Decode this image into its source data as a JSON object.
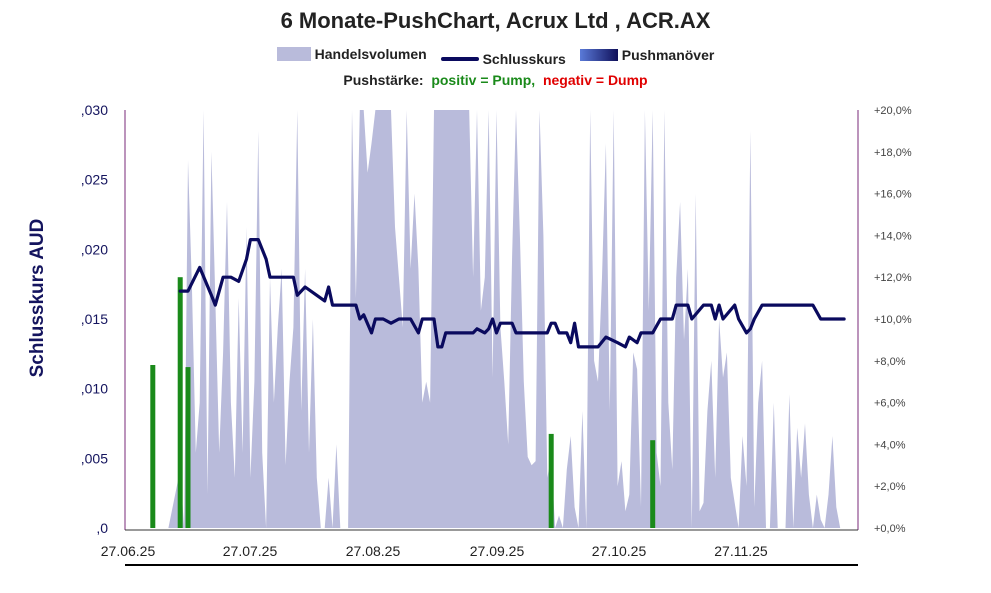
{
  "chart_data": {
    "type": "line",
    "title": "6 Monate-PushChart, Acrux Ltd , ACR.AX",
    "ylabel": "Schlusskurs AUD",
    "legend": [
      {
        "name": "Handelsvolumen",
        "kind": "area",
        "color": "#b9bbdb"
      },
      {
        "name": "Schlusskurs",
        "kind": "line",
        "color": "#0a0a5e"
      },
      {
        "name": "Pushmanöver",
        "kind": "gradient",
        "color": "#10105a"
      }
    ],
    "subtitle": {
      "label": "Pushstärke:",
      "positive": "positiv = Pump,",
      "negative": "negativ = Dump",
      "positive_color": "#1a8a1a",
      "negative_color": "#e00000"
    },
    "x_tick_labels": [
      "27.06.25",
      "27.07.25",
      "27.08.25",
      "27.09.25",
      "27.10.25",
      "27.11.25"
    ],
    "y_left": {
      "min": 0,
      "max": 0.03,
      "ticks": [
        ",0",
        ",005",
        ",010",
        ",015",
        ",020",
        ",025",
        ",030"
      ]
    },
    "y_right": {
      "min": 0,
      "max": 20,
      "ticks": [
        "+0,0%",
        "+2,0%",
        "+4,0%",
        "+6,0%",
        "+8,0%",
        "+10,0%",
        "+12,0%",
        "+14,0%",
        "+16,0%",
        "+18,0%",
        "+20,0%"
      ]
    },
    "days_total": 181,
    "close_price": [
      [
        9,
        0.017
      ],
      [
        11,
        0.017
      ],
      [
        14,
        0.0187
      ],
      [
        17,
        0.0167
      ],
      [
        18,
        0.016
      ],
      [
        20,
        0.018
      ],
      [
        22,
        0.018
      ],
      [
        24,
        0.0177
      ],
      [
        26,
        0.0193
      ],
      [
        27,
        0.0207
      ],
      [
        29,
        0.0207
      ],
      [
        31,
        0.0193
      ],
      [
        32,
        0.018
      ],
      [
        38,
        0.018
      ],
      [
        39,
        0.0167
      ],
      [
        41,
        0.0173
      ],
      [
        44,
        0.0167
      ],
      [
        46,
        0.0163
      ],
      [
        47,
        0.0173
      ],
      [
        48,
        0.016
      ],
      [
        54,
        0.016
      ],
      [
        55,
        0.015
      ],
      [
        56,
        0.0153
      ],
      [
        58,
        0.014
      ],
      [
        59,
        0.015
      ],
      [
        61,
        0.015
      ],
      [
        63,
        0.0147
      ],
      [
        65,
        0.015
      ],
      [
        68,
        0.015
      ],
      [
        70,
        0.014
      ],
      [
        71,
        0.015
      ],
      [
        74,
        0.015
      ],
      [
        75,
        0.013
      ],
      [
        76,
        0.013
      ],
      [
        77,
        0.014
      ],
      [
        84,
        0.014
      ],
      [
        85,
        0.0143
      ],
      [
        87,
        0.014
      ],
      [
        88,
        0.0143
      ],
      [
        89,
        0.015
      ],
      [
        90,
        0.014
      ],
      [
        91,
        0.0147
      ],
      [
        94,
        0.0147
      ],
      [
        95,
        0.014
      ],
      [
        103,
        0.014
      ],
      [
        104,
        0.0147
      ],
      [
        105,
        0.0147
      ],
      [
        106,
        0.014
      ],
      [
        108,
        0.014
      ],
      [
        109,
        0.0133
      ],
      [
        110,
        0.0147
      ],
      [
        111,
        0.013
      ],
      [
        116,
        0.013
      ],
      [
        118,
        0.0137
      ],
      [
        121,
        0.0133
      ],
      [
        123,
        0.013
      ],
      [
        124,
        0.0137
      ],
      [
        126,
        0.0133
      ],
      [
        127,
        0.014
      ],
      [
        130,
        0.014
      ],
      [
        132,
        0.015
      ],
      [
        135,
        0.015
      ],
      [
        136,
        0.016
      ],
      [
        139,
        0.016
      ],
      [
        140,
        0.015
      ],
      [
        143,
        0.016
      ],
      [
        145,
        0.016
      ],
      [
        146,
        0.015
      ],
      [
        147,
        0.016
      ],
      [
        148,
        0.015
      ],
      [
        151,
        0.016
      ],
      [
        152,
        0.015
      ],
      [
        154,
        0.014
      ],
      [
        155,
        0.0143
      ],
      [
        156,
        0.015
      ],
      [
        158,
        0.016
      ],
      [
        171,
        0.016
      ],
      [
        173,
        0.015
      ],
      [
        179,
        0.015
      ]
    ],
    "volume_pct_of_scale": [
      [
        0,
        0
      ],
      [
        6,
        0
      ],
      [
        9,
        14
      ],
      [
        10,
        0
      ],
      [
        11,
        88
      ],
      [
        12,
        58
      ],
      [
        13,
        18
      ],
      [
        14,
        30
      ],
      [
        15,
        100
      ],
      [
        16,
        8
      ],
      [
        17,
        90
      ],
      [
        18,
        55
      ],
      [
        19,
        18
      ],
      [
        20,
        42
      ],
      [
        21,
        78
      ],
      [
        22,
        30
      ],
      [
        23,
        12
      ],
      [
        24,
        55
      ],
      [
        25,
        18
      ],
      [
        26,
        72
      ],
      [
        27,
        12
      ],
      [
        28,
        35
      ],
      [
        29,
        95
      ],
      [
        30,
        18
      ],
      [
        31,
        0
      ],
      [
        32,
        60
      ],
      [
        33,
        30
      ],
      [
        34,
        48
      ],
      [
        35,
        62
      ],
      [
        36,
        15
      ],
      [
        37,
        35
      ],
      [
        38,
        48
      ],
      [
        39,
        100
      ],
      [
        40,
        28
      ],
      [
        41,
        62
      ],
      [
        42,
        18
      ],
      [
        43,
        50
      ],
      [
        44,
        12
      ],
      [
        45,
        0
      ],
      [
        46,
        0
      ],
      [
        47,
        12
      ],
      [
        48,
        0
      ],
      [
        49,
        20
      ],
      [
        50,
        0
      ],
      [
        51,
        0
      ],
      [
        52,
        0
      ],
      [
        53,
        100
      ],
      [
        54,
        55
      ],
      [
        55,
        100
      ],
      [
        56,
        100
      ],
      [
        57,
        85
      ],
      [
        58,
        92
      ],
      [
        59,
        100
      ],
      [
        60,
        100
      ],
      [
        61,
        100
      ],
      [
        62,
        100
      ],
      [
        63,
        100
      ],
      [
        64,
        72
      ],
      [
        65,
        60
      ],
      [
        66,
        48
      ],
      [
        67,
        100
      ],
      [
        68,
        62
      ],
      [
        69,
        80
      ],
      [
        70,
        62
      ],
      [
        71,
        30
      ],
      [
        72,
        35
      ],
      [
        73,
        30
      ],
      [
        74,
        100
      ],
      [
        75,
        100
      ],
      [
        76,
        100
      ],
      [
        77,
        100
      ],
      [
        78,
        100
      ],
      [
        79,
        100
      ],
      [
        80,
        100
      ],
      [
        81,
        100
      ],
      [
        82,
        100
      ],
      [
        83,
        100
      ],
      [
        84,
        60
      ],
      [
        85,
        100
      ],
      [
        86,
        52
      ],
      [
        87,
        60
      ],
      [
        88,
        100
      ],
      [
        89,
        36
      ],
      [
        90,
        100
      ],
      [
        91,
        48
      ],
      [
        92,
        35
      ],
      [
        93,
        20
      ],
      [
        94,
        65
      ],
      [
        95,
        100
      ],
      [
        96,
        70
      ],
      [
        97,
        35
      ],
      [
        98,
        17
      ],
      [
        99,
        15
      ],
      [
        100,
        16
      ],
      [
        101,
        100
      ],
      [
        102,
        70
      ],
      [
        103,
        12
      ],
      [
        104,
        17
      ],
      [
        105,
        0
      ],
      [
        106,
        3
      ],
      [
        107,
        0
      ],
      [
        108,
        14
      ],
      [
        109,
        22
      ],
      [
        110,
        5
      ],
      [
        111,
        0
      ],
      [
        112,
        28
      ],
      [
        113,
        0
      ],
      [
        114,
        100
      ],
      [
        115,
        40
      ],
      [
        116,
        35
      ],
      [
        117,
        60
      ],
      [
        118,
        92
      ],
      [
        119,
        28
      ],
      [
        120,
        100
      ],
      [
        121,
        10
      ],
      [
        122,
        16
      ],
      [
        123,
        4
      ],
      [
        124,
        8
      ],
      [
        125,
        42
      ],
      [
        126,
        38
      ],
      [
        127,
        5
      ],
      [
        128,
        100
      ],
      [
        129,
        52
      ],
      [
        130,
        100
      ],
      [
        131,
        18
      ],
      [
        132,
        10
      ],
      [
        133,
        100
      ],
      [
        134,
        30
      ],
      [
        135,
        14
      ],
      [
        136,
        60
      ],
      [
        137,
        78
      ],
      [
        138,
        45
      ],
      [
        139,
        62
      ],
      [
        140,
        0
      ],
      [
        141,
        80
      ],
      [
        142,
        4
      ],
      [
        143,
        6
      ],
      [
        144,
        28
      ],
      [
        145,
        40
      ],
      [
        146,
        12
      ],
      [
        147,
        50
      ],
      [
        148,
        36
      ],
      [
        149,
        42
      ],
      [
        150,
        12
      ],
      [
        151,
        6
      ],
      [
        152,
        0
      ],
      [
        153,
        22
      ],
      [
        154,
        10
      ],
      [
        155,
        95
      ],
      [
        156,
        5
      ],
      [
        157,
        30
      ],
      [
        158,
        40
      ],
      [
        159,
        0
      ],
      [
        160,
        0
      ],
      [
        161,
        30
      ],
      [
        162,
        0
      ],
      [
        163,
        0
      ],
      [
        164,
        0
      ],
      [
        165,
        32
      ],
      [
        166,
        0
      ],
      [
        167,
        24
      ],
      [
        168,
        12
      ],
      [
        169,
        25
      ],
      [
        170,
        8
      ],
      [
        171,
        0
      ],
      [
        172,
        8
      ],
      [
        173,
        2
      ],
      [
        174,
        0
      ],
      [
        175,
        8
      ],
      [
        176,
        22
      ],
      [
        177,
        5
      ],
      [
        178,
        0
      ],
      [
        179,
        0
      ]
    ],
    "push_pct": [
      [
        2,
        7.8
      ],
      [
        9,
        12.0
      ],
      [
        11,
        7.7
      ],
      [
        104,
        4.5
      ],
      [
        130,
        4.2
      ]
    ]
  }
}
